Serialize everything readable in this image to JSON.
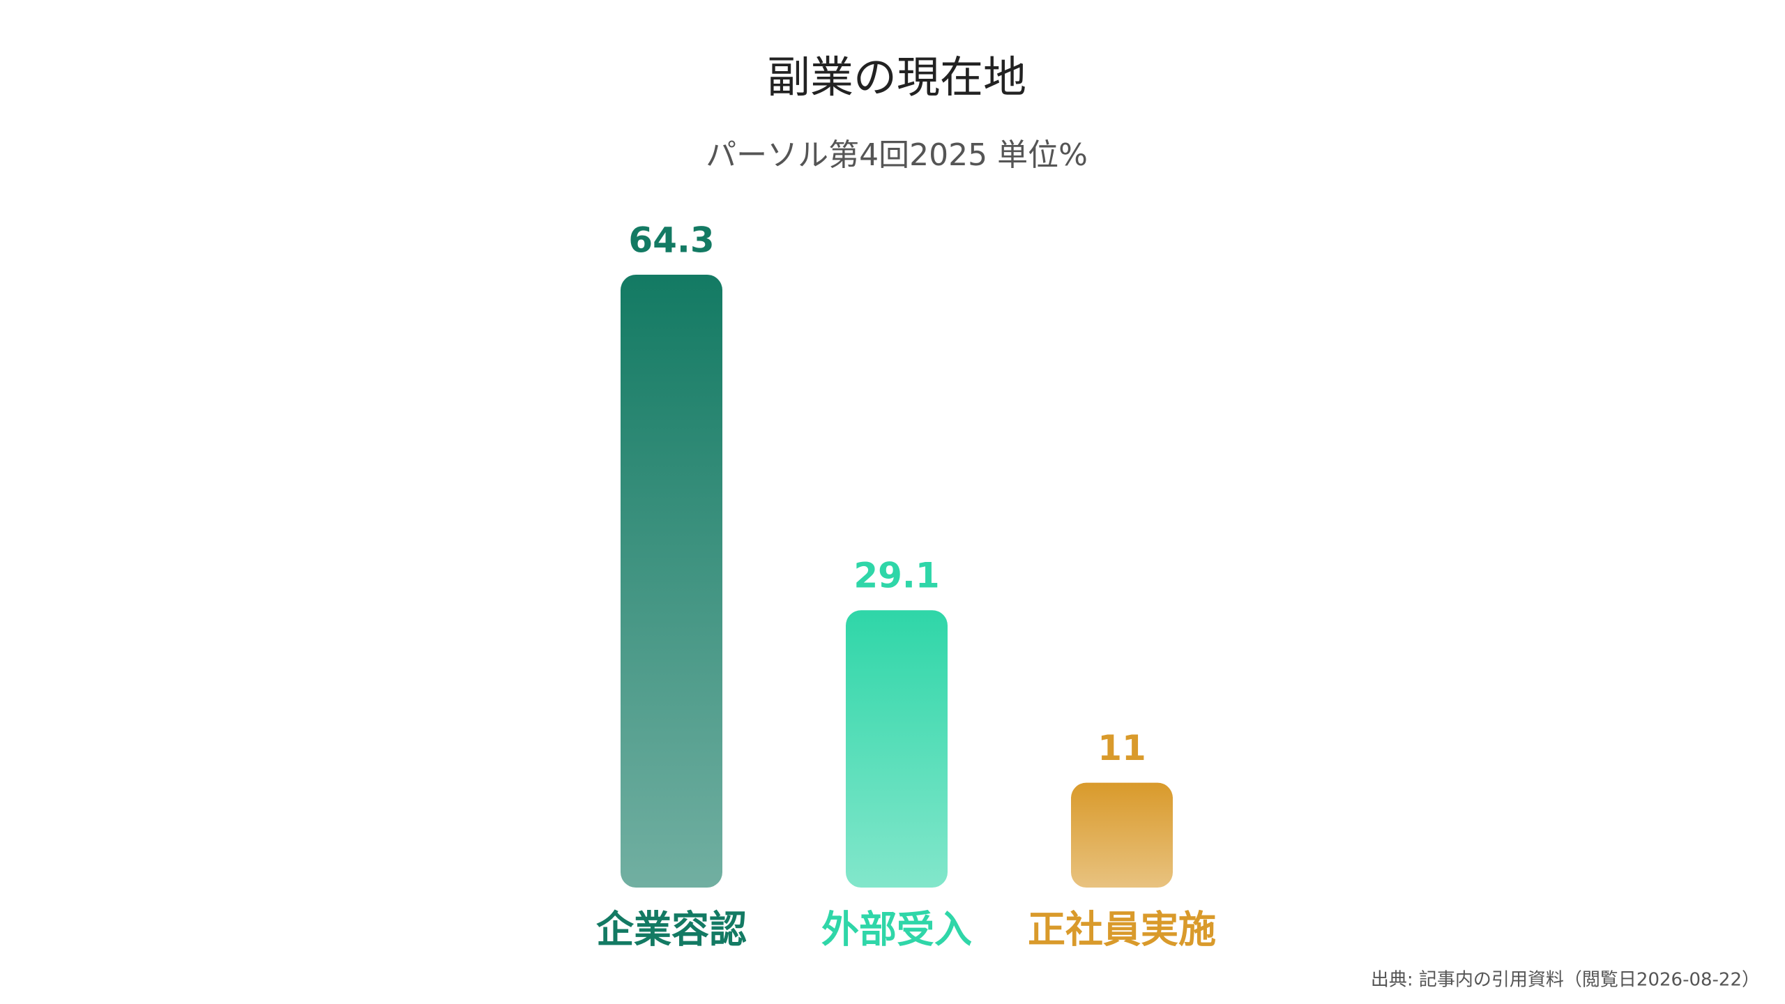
{
  "chart_data": {
    "type": "bar",
    "title": "副業の現在地",
    "subtitle": "パーソル第4回2025 単位%",
    "categories": [
      "企業容認",
      "外部受入",
      "正社員実施"
    ],
    "values": [
      64.3,
      29.1,
      11
    ],
    "colors": [
      "#137a63",
      "#2fd6a8",
      "#d99a2b"
    ],
    "source": "出典: 記事内の引用資料（閲覧日2026-08-22）"
  }
}
